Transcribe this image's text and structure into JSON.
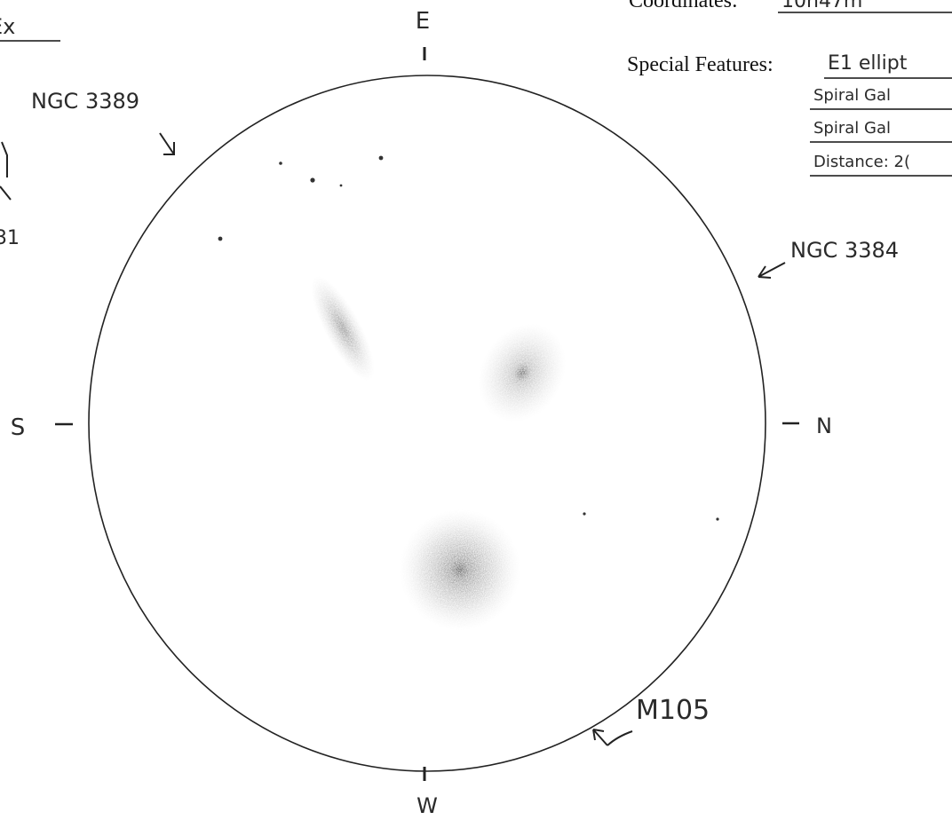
{
  "header": {
    "coordinates_label": "Coordinates:",
    "coordinates_value": "10h47m"
  },
  "features": {
    "label": "Special Features:",
    "items": [
      "E1 ellipt",
      "Spiral Gal",
      "Spiral Gal",
      "Distance: 2("
    ]
  },
  "margin": [
    "Ex",
    "31"
  ],
  "compass": {
    "east": "E",
    "south": "S",
    "north": "N",
    "west": "W"
  },
  "objects": [
    {
      "label": "NGC 3389"
    },
    {
      "label": "NGC 3384"
    },
    {
      "label": "M105"
    }
  ]
}
